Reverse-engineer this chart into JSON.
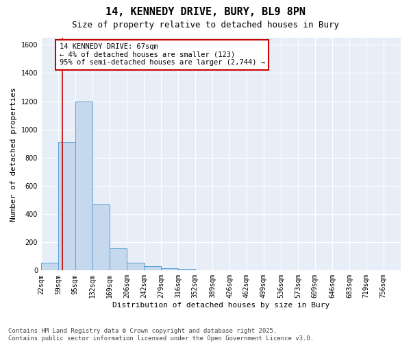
{
  "title": "14, KENNEDY DRIVE, BURY, BL9 8PN",
  "subtitle": "Size of property relative to detached houses in Bury",
  "xlabel": "Distribution of detached houses by size in Bury",
  "ylabel": "Number of detached properties",
  "bins": [
    "22sqm",
    "59sqm",
    "95sqm",
    "132sqm",
    "169sqm",
    "206sqm",
    "242sqm",
    "279sqm",
    "316sqm",
    "352sqm",
    "389sqm",
    "426sqm",
    "462sqm",
    "499sqm",
    "536sqm",
    "573sqm",
    "609sqm",
    "646sqm",
    "683sqm",
    "719sqm",
    "756sqm"
  ],
  "bin_edges": [
    22,
    59,
    95,
    132,
    169,
    206,
    242,
    279,
    316,
    352,
    389,
    426,
    462,
    499,
    536,
    573,
    609,
    646,
    683,
    719,
    756
  ],
  "values": [
    55,
    910,
    1200,
    470,
    155,
    55,
    30,
    15,
    10,
    0,
    0,
    0,
    0,
    0,
    0,
    0,
    0,
    0,
    0,
    0
  ],
  "bar_color": "#c5d8ee",
  "bar_edge_color": "#5a9fd4",
  "property_line_x": 67,
  "property_line_color": "#cc0000",
  "annotation_text": "14 KENNEDY DRIVE: 67sqm\n← 4% of detached houses are smaller (123)\n95% of semi-detached houses are larger (2,744) →",
  "annotation_box_color": "#ffffff",
  "annotation_box_edge": "#cc0000",
  "ylim": [
    0,
    1650
  ],
  "yticks": [
    0,
    200,
    400,
    600,
    800,
    1000,
    1200,
    1400,
    1600
  ],
  "background_color": "#e8eef8",
  "footnote": "Contains HM Land Registry data © Crown copyright and database right 2025.\nContains public sector information licensed under the Open Government Licence v3.0.",
  "title_fontsize": 11,
  "subtitle_fontsize": 9,
  "axis_label_fontsize": 8,
  "tick_fontsize": 7,
  "annotation_fontsize": 7.5,
  "footnote_fontsize": 6.5
}
